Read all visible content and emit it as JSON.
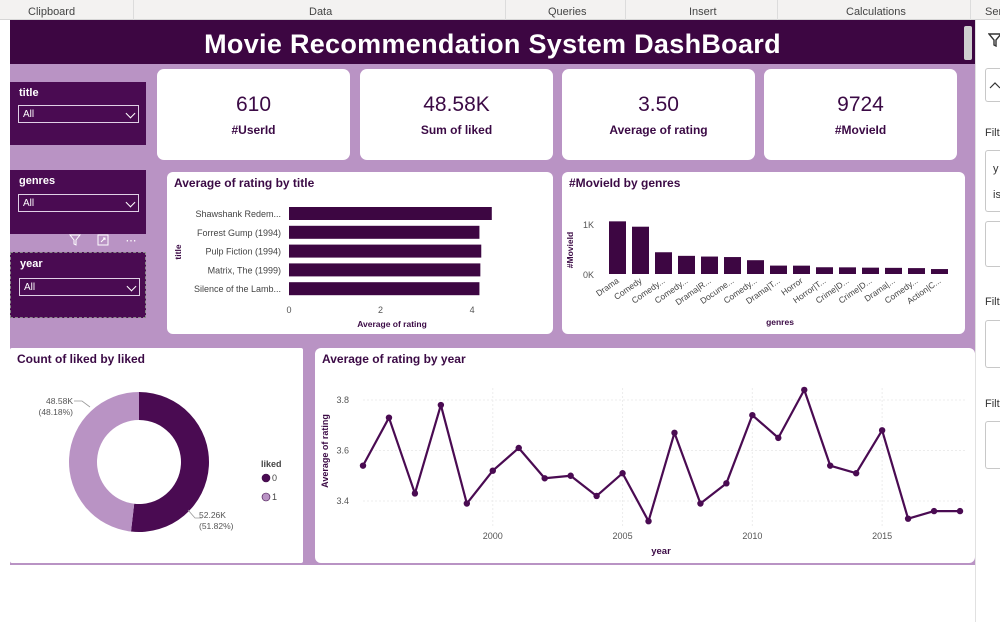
{
  "ribbon": {
    "groups": [
      "Clipboard",
      "Data",
      "Queries",
      "Insert",
      "Calculations",
      "Ser"
    ]
  },
  "dashboard": {
    "title": "Movie Recommendation System DashBoard"
  },
  "slicers": [
    {
      "label": "title",
      "value": "All"
    },
    {
      "label": "genres",
      "value": "All"
    },
    {
      "label": "year",
      "value": "All"
    }
  ],
  "kpis": [
    {
      "value": "610",
      "label": "#UserId"
    },
    {
      "value": "48.58K",
      "label": "Sum of liked"
    },
    {
      "value": "3.50",
      "label": "Average of rating"
    },
    {
      "value": "9724",
      "label": "#MovieId"
    }
  ],
  "visual_toolbar": {
    "filter_icon": "filter-icon",
    "focus_icon": "focus-mode-icon",
    "more_icon": "more-options-icon"
  },
  "right_panel": {
    "labels": [
      "Filt",
      "Filt",
      "Filt"
    ],
    "item_text": [
      "y",
      "is"
    ]
  },
  "chart_data": [
    {
      "type": "bar",
      "orientation": "horizontal",
      "title": "Average of rating by title",
      "xlabel": "Average of rating",
      "ylabel": "title",
      "categories": [
        "Shawshank Redem...",
        "Forrest Gump (1994)",
        "Pulp Fiction (1994)",
        "Matrix, The (1999)",
        "Silence of the Lamb..."
      ],
      "values": [
        4.43,
        4.16,
        4.2,
        4.18,
        4.16
      ],
      "xlim": [
        0,
        4.5
      ],
      "xticks": [
        "0",
        "2",
        "4"
      ],
      "color": "#3d0642"
    },
    {
      "type": "bar",
      "title": "#MovieId by genres",
      "xlabel": "genres",
      "ylabel": "#MovieId",
      "categories": [
        "Drama",
        "Comedy",
        "Comedy...",
        "Comedy...",
        "Drama|R...",
        "Docume...",
        "Comedy...",
        "Drama|T...",
        "Horror",
        "Horror|T...",
        "Crime|D...",
        "Crime|D...",
        "Drama|...",
        "Comedy...",
        "Action|C..."
      ],
      "values": [
        1053,
        946,
        435,
        363,
        349,
        339,
        276,
        168,
        167,
        135,
        133,
        127,
        123,
        118,
        99
      ],
      "ylim": [
        0,
        1100
      ],
      "yticks": [
        "1K",
        "0K"
      ],
      "color": "#3d0642"
    },
    {
      "type": "pie",
      "donut": true,
      "title": "Count of liked by liked",
      "legend_title": "liked",
      "legend_position": "right",
      "series": [
        {
          "name": "0",
          "value": 52260,
          "label": "52.26K",
          "pct": "(51.82%)",
          "color": "#4a0b52"
        },
        {
          "name": "1",
          "value": 48580,
          "label": "48.58K",
          "pct": "(48.18%)",
          "color": "#b993c4"
        }
      ]
    },
    {
      "type": "line",
      "title": "Average of rating by year",
      "xlabel": "year",
      "ylabel": "Average of rating",
      "x": [
        1995,
        1996,
        1997,
        1998,
        1999,
        2000,
        2001,
        2002,
        2003,
        2004,
        2005,
        2006,
        2007,
        2008,
        2009,
        2010,
        2011,
        2012,
        2013,
        2014,
        2015,
        2016,
        2017,
        2018
      ],
      "y": [
        3.54,
        3.73,
        3.43,
        3.78,
        3.39,
        3.52,
        3.61,
        3.49,
        3.5,
        3.42,
        3.51,
        3.32,
        3.67,
        3.39,
        3.47,
        3.74,
        3.65,
        3.84,
        3.54,
        3.51,
        3.68,
        3.33,
        3.36,
        3.36
      ],
      "xticks": [
        "2000",
        "2005",
        "2010",
        "2015"
      ],
      "yticks": [
        "3.8",
        "3.6",
        "3.4"
      ],
      "ylim": [
        3.28,
        3.9
      ],
      "color": "#4a0b52"
    }
  ]
}
